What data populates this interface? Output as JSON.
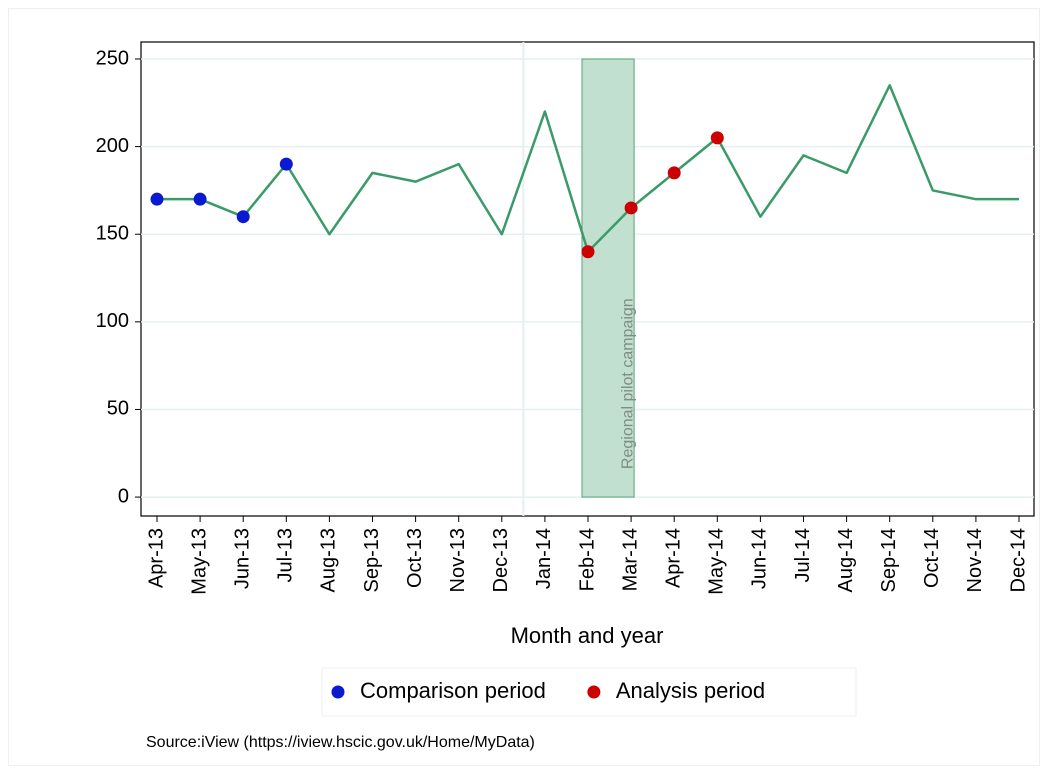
{
  "chart_data": {
    "type": "line",
    "categories": [
      "Apr-13",
      "May-13",
      "Jun-13",
      "Jul-13",
      "Aug-13",
      "Sep-13",
      "Oct-13",
      "Nov-13",
      "Dec-13",
      "Jan-14",
      "Feb-14",
      "Mar-14",
      "Apr-14",
      "May-14",
      "Jun-14",
      "Jul-14",
      "Aug-14",
      "Sep-14",
      "Oct-14",
      "Nov-14",
      "Dec-14"
    ],
    "series": [
      {
        "style": "line",
        "color": "#3a9a68",
        "values": [
          170,
          170,
          160,
          190,
          150,
          185,
          180,
          190,
          150,
          220,
          140,
          165,
          185,
          205,
          160,
          195,
          185,
          235,
          175,
          170,
          170
        ]
      },
      {
        "style": "markers",
        "name": "Comparison period",
        "color": "#0a1ad0",
        "values": [
          170,
          170,
          160,
          190,
          null,
          null,
          null,
          null,
          null,
          null,
          null,
          null,
          null,
          null,
          null,
          null,
          null,
          null,
          null,
          null,
          null
        ]
      },
      {
        "style": "markers",
        "name": "Analysis period",
        "color": "#cc0000",
        "values": [
          null,
          null,
          null,
          null,
          null,
          null,
          null,
          null,
          null,
          null,
          140,
          165,
          185,
          205,
          null,
          null,
          null,
          null,
          null,
          null,
          null
        ]
      }
    ],
    "xlabel": "Month and year",
    "ylim": [
      -10.8,
      259.7
    ],
    "yticks": [
      0,
      50,
      100,
      150,
      200,
      250
    ],
    "grid": true,
    "annotation": {
      "text": "Regional pilot campaign",
      "from": "Feb-14",
      "to": "Mar-14",
      "y": [
        0,
        250
      ],
      "color": "#c2e0d0"
    },
    "legend": "bottom",
    "source": "Source:iView (https://iview.hscic.gov.uk/Home/MyData)"
  }
}
